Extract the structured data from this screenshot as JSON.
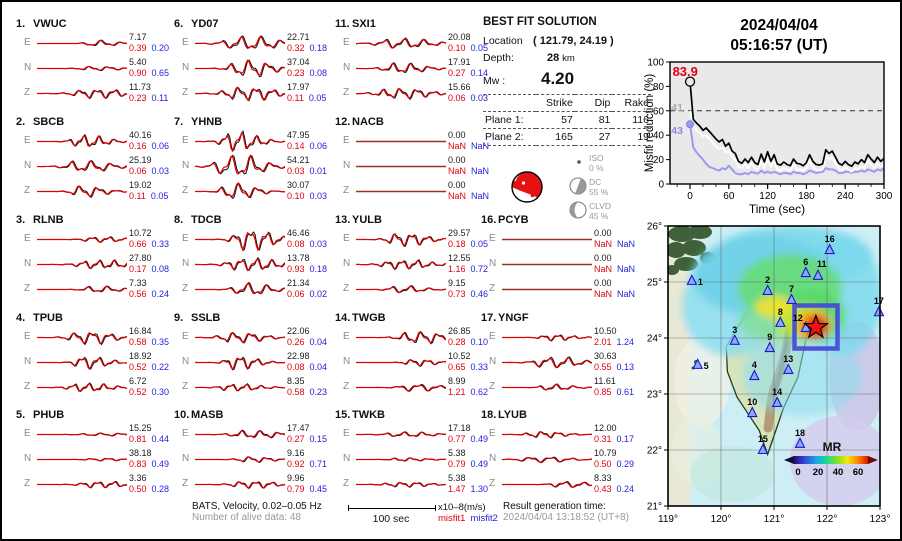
{
  "title": {
    "date": "2024/04/04",
    "time": "05:16:57  (UT)"
  },
  "solution": {
    "title": "BEST FIT SOLUTION",
    "location_label": "Location",
    "location_value": "( 121.79,  24.19 )",
    "depth_label": "Depth:",
    "depth_value": "28",
    "depth_unit": "km",
    "mw_label": "Mw :",
    "mw_value": "4.20",
    "table_headers": [
      "Strike",
      "Dip",
      "Rake"
    ],
    "planes": [
      {
        "label": "Plane 1:",
        "strike": "57",
        "dip": "81",
        "rake": "116"
      },
      {
        "label": "Plane 2:",
        "strike": "165",
        "dip": "27",
        "rake": "19"
      }
    ],
    "decomposition": [
      {
        "name": "ISO",
        "pct": "0 %"
      },
      {
        "name": "DC",
        "pct": "55 %"
      },
      {
        "name": "CLVD",
        "pct": "45 %"
      }
    ],
    "beachball_color": "#e81111"
  },
  "stations": [
    {
      "num": "1.",
      "name": "VWUC",
      "channels": [
        {
          "ch": "E",
          "amp": "7.17",
          "m1": "0.39",
          "m2": "0.20",
          "w": 0.9
        },
        {
          "ch": "N",
          "amp": "5.40",
          "m1": "0.90",
          "m2": "0.65",
          "w": 0.6
        },
        {
          "ch": "Z",
          "amp": "11.73",
          "m1": "0.23",
          "m2": "0.11",
          "w": 1.3
        }
      ]
    },
    {
      "num": "2.",
      "name": "SBCB",
      "channels": [
        {
          "ch": "E",
          "amp": "40.16",
          "m1": "0.16",
          "m2": "0.06",
          "w": 1.8
        },
        {
          "ch": "N",
          "amp": "25.19",
          "m1": "0.06",
          "m2": "0.03",
          "w": 1.6
        },
        {
          "ch": "Z",
          "amp": "19.02",
          "m1": "0.11",
          "m2": "0.05",
          "w": 1.6
        }
      ]
    },
    {
      "num": "3.",
      "name": "RLNB",
      "channels": [
        {
          "ch": "E",
          "amp": "10.72",
          "m1": "0.66",
          "m2": "0.33",
          "w": 0.8
        },
        {
          "ch": "N",
          "amp": "27.80",
          "m1": "0.17",
          "m2": "0.08",
          "w": 1.2
        },
        {
          "ch": "Z",
          "amp": "7.33",
          "m1": "0.56",
          "m2": "0.24",
          "w": 0.9
        }
      ]
    },
    {
      "num": "4.",
      "name": "TPUB",
      "channels": [
        {
          "ch": "E",
          "amp": "16.84",
          "m1": "0.58",
          "m2": "0.35",
          "w": 1.8
        },
        {
          "ch": "N",
          "amp": "18.92",
          "m1": "0.52",
          "m2": "0.22",
          "w": 1.9
        },
        {
          "ch": "Z",
          "amp": "6.72",
          "m1": "0.52",
          "m2": "0.30",
          "w": 1.2
        }
      ]
    },
    {
      "num": "5.",
      "name": "PHUB",
      "channels": [
        {
          "ch": "E",
          "amp": "15.25",
          "m1": "0.81",
          "m2": "0.44",
          "w": 0.4
        },
        {
          "ch": "N",
          "amp": "38.18",
          "m1": "0.83",
          "m2": "0.49",
          "w": 0.4
        },
        {
          "ch": "Z",
          "amp": "3.36",
          "m1": "0.50",
          "m2": "0.28",
          "w": 0.9
        }
      ]
    },
    {
      "num": "6.",
      "name": "YD07",
      "channels": [
        {
          "ch": "E",
          "amp": "22.71",
          "m1": "0.32",
          "m2": "0.18",
          "w": 2.0
        },
        {
          "ch": "N",
          "amp": "37.04",
          "m1": "0.23",
          "m2": "0.08",
          "w": 2.4
        },
        {
          "ch": "Z",
          "amp": "17.97",
          "m1": "0.11",
          "m2": "0.05",
          "w": 1.9
        }
      ]
    },
    {
      "num": "7.",
      "name": "YHNB",
      "channels": [
        {
          "ch": "E",
          "amp": "47.95",
          "m1": "0.14",
          "m2": "0.06",
          "w": 2.8
        },
        {
          "ch": "N",
          "amp": "54.21",
          "m1": "0.03",
          "m2": "0.01",
          "w": 3.2
        },
        {
          "ch": "Z",
          "amp": "30.07",
          "m1": "0.10",
          "m2": "0.03",
          "w": 2.4
        }
      ]
    },
    {
      "num": "8.",
      "name": "TDCB",
      "channels": [
        {
          "ch": "E",
          "amp": "46.46",
          "m1": "0.08",
          "m2": "0.03",
          "w": 3.0
        },
        {
          "ch": "N",
          "amp": "13.78",
          "m1": "0.93",
          "m2": "0.18",
          "w": 1.8
        },
        {
          "ch": "Z",
          "amp": "21.34",
          "m1": "0.06",
          "m2": "0.02",
          "w": 1.8
        }
      ]
    },
    {
      "num": "9.",
      "name": "SSLB",
      "channels": [
        {
          "ch": "E",
          "amp": "22.06",
          "m1": "0.26",
          "m2": "0.04",
          "w": 1.5
        },
        {
          "ch": "N",
          "amp": "22.98",
          "m1": "0.08",
          "m2": "0.04",
          "w": 2.0
        },
        {
          "ch": "Z",
          "amp": "8.35",
          "m1": "0.58",
          "m2": "0.23",
          "w": 1.0
        }
      ]
    },
    {
      "num": "10.",
      "name": "MASB",
      "channels": [
        {
          "ch": "E",
          "amp": "17.47",
          "m1": "0.27",
          "m2": "0.15",
          "w": 1.1
        },
        {
          "ch": "N",
          "amp": "9.16",
          "m1": "0.92",
          "m2": "0.71",
          "w": 0.8
        },
        {
          "ch": "Z",
          "amp": "9.96",
          "m1": "0.79",
          "m2": "0.45",
          "w": 1.0
        }
      ]
    },
    {
      "num": "11.",
      "name": "SXI1",
      "channels": [
        {
          "ch": "E",
          "amp": "20.08",
          "m1": "0.10",
          "m2": "0.05",
          "w": 1.4
        },
        {
          "ch": "N",
          "amp": "17.91",
          "m1": "0.27",
          "m2": "0.14",
          "w": 1.5
        },
        {
          "ch": "Z",
          "amp": "15.66",
          "m1": "0.06",
          "m2": "0.03",
          "w": 1.5
        }
      ]
    },
    {
      "num": "12.",
      "name": "NACB",
      "channels": [
        {
          "ch": "E",
          "amp": "0.00",
          "m1": "NaN",
          "m2": "NaN",
          "w": 0
        },
        {
          "ch": "N",
          "amp": "0.00",
          "m1": "NaN",
          "m2": "NaN",
          "w": 0
        },
        {
          "ch": "Z",
          "amp": "0.00",
          "m1": "NaN",
          "m2": "NaN",
          "w": 0
        }
      ]
    },
    {
      "num": "13.",
      "name": "YULB",
      "channels": [
        {
          "ch": "E",
          "amp": "29.57",
          "m1": "0.18",
          "m2": "0.05",
          "w": 1.9
        },
        {
          "ch": "N",
          "amp": "12.55",
          "m1": "1.16",
          "m2": "0.72",
          "w": 1.3
        },
        {
          "ch": "Z",
          "amp": "9.15",
          "m1": "0.73",
          "m2": "0.46",
          "w": 1.0
        }
      ]
    },
    {
      "num": "14.",
      "name": "TWGB",
      "channels": [
        {
          "ch": "E",
          "amp": "26.85",
          "m1": "0.28",
          "m2": "0.10",
          "w": 1.7
        },
        {
          "ch": "N",
          "amp": "10.52",
          "m1": "0.65",
          "m2": "0.33",
          "w": 1.0
        },
        {
          "ch": "Z",
          "amp": "8.99",
          "m1": "1.21",
          "m2": "0.62",
          "w": 1.0
        }
      ]
    },
    {
      "num": "15.",
      "name": "TWKB",
      "channels": [
        {
          "ch": "E",
          "amp": "17.18",
          "m1": "0.77",
          "m2": "0.49",
          "w": 0.7
        },
        {
          "ch": "N",
          "amp": "5.38",
          "m1": "0.79",
          "m2": "0.49",
          "w": 0.5
        },
        {
          "ch": "Z",
          "amp": "5.38",
          "m1": "1.47",
          "m2": "1.30",
          "w": 0.7
        }
      ]
    },
    {
      "num": "16.",
      "name": "PCYB",
      "channels": [
        {
          "ch": "E",
          "amp": "0.00",
          "m1": "NaN",
          "m2": "NaN",
          "w": 0
        },
        {
          "ch": "N",
          "amp": "0.00",
          "m1": "NaN",
          "m2": "NaN",
          "w": 0
        },
        {
          "ch": "Z",
          "amp": "0.00",
          "m1": "NaN",
          "m2": "NaN",
          "w": 0
        }
      ]
    },
    {
      "num": "17.",
      "name": "YNGF",
      "channels": [
        {
          "ch": "E",
          "amp": "10.50",
          "m1": "2.01",
          "m2": "1.24",
          "w": 0.9
        },
        {
          "ch": "N",
          "amp": "30.63",
          "m1": "0.55",
          "m2": "0.13",
          "w": 1.6
        },
        {
          "ch": "Z",
          "amp": "11.61",
          "m1": "0.85",
          "m2": "0.61",
          "w": 0.9
        }
      ]
    },
    {
      "num": "18.",
      "name": "LYUB",
      "channels": [
        {
          "ch": "E",
          "amp": "12.00",
          "m1": "0.31",
          "m2": "0.17",
          "w": 0.9
        },
        {
          "ch": "N",
          "amp": "10.79",
          "m1": "0.50",
          "m2": "0.29",
          "w": 0.8
        },
        {
          "ch": "Z",
          "amp": "8.33",
          "m1": "0.43",
          "m2": "0.24",
          "w": 0.9
        }
      ]
    }
  ],
  "footer": {
    "band": "BATS, Velocity, 0.02–0.05 Hz",
    "alive": "Number of alive data: 48",
    "scale": "100 sec",
    "units": "x10–8(m/s)",
    "misfit1": "misfit1",
    "misfit2": "misfit2",
    "gen_label": "Result generation time:",
    "gen_time": "2024/04/04 13:18:52 (UT+8)"
  },
  "chart_data": [
    {
      "type": "line",
      "title": "2024/04/04 05:16:57 (UT)",
      "xlabel": "Time (sec)",
      "ylabel": "Misfit reduction (%)",
      "xlim": [
        -31,
        300
      ],
      "ylim": [
        0,
        100
      ],
      "xticks": [
        0,
        60,
        120,
        180,
        240,
        300
      ],
      "yticks": [
        0,
        20,
        40,
        60,
        80,
        100
      ],
      "dashed_line_y": 60,
      "grid": false,
      "x": [
        0,
        5,
        10,
        15,
        20,
        25,
        30,
        35,
        40,
        45,
        50,
        55,
        60,
        65,
        70,
        75,
        80,
        85,
        90,
        95,
        100,
        105,
        110,
        115,
        120,
        125,
        130,
        135,
        140,
        145,
        150,
        155,
        160,
        165,
        170,
        175,
        180,
        185,
        190,
        195,
        200,
        205,
        210,
        215,
        220,
        225,
        230,
        235,
        240,
        245,
        250,
        255,
        260,
        265,
        270,
        275,
        280,
        285,
        290,
        295,
        300
      ],
      "series": [
        {
          "name": "misfit1 reduction",
          "color": "#000000",
          "values": [
            83.9,
            53,
            50,
            47.5,
            44,
            46,
            43,
            40,
            37,
            34.5,
            36.5,
            31,
            33.5,
            27,
            25,
            18.5,
            17,
            20.5,
            17.5,
            22,
            17.5,
            16,
            24.5,
            18,
            26.5,
            18.5,
            24,
            16.5,
            15.5,
            18,
            16,
            15,
            20.5,
            17,
            16.5,
            15,
            17.5,
            24,
            18.5,
            16,
            15.5,
            16.5,
            28,
            25,
            27,
            22,
            17,
            15.5,
            18.5,
            16,
            14.5,
            18,
            16.5,
            20,
            17.5,
            24,
            20.5,
            17.5,
            22,
            18.5,
            21
          ]
        },
        {
          "name": "reference",
          "color": "#ffffff",
          "values": [
            60,
            48,
            44,
            42,
            39,
            40,
            37,
            34,
            31,
            29,
            30,
            26,
            27,
            22,
            20,
            14,
            13,
            16,
            13,
            17,
            13,
            12,
            19,
            13,
            21,
            14,
            19,
            12,
            11,
            13,
            12,
            11,
            16,
            12,
            12,
            11,
            13,
            19,
            14,
            12,
            11,
            12,
            23,
            20,
            22,
            17,
            13,
            11,
            14,
            12,
            10,
            13,
            12,
            15,
            13,
            19,
            16,
            13,
            17,
            14,
            16
          ]
        },
        {
          "name": "misfit2 reduction",
          "color": "#9a9af0",
          "values": [
            49,
            30,
            26,
            23,
            20,
            16.5,
            14,
            13,
            12,
            11,
            13,
            12,
            15,
            12,
            9,
            8,
            8,
            9,
            8,
            10,
            9,
            8.5,
            11,
            9,
            10,
            9,
            10,
            9,
            8,
            9,
            9,
            8,
            10,
            9,
            9,
            8,
            9,
            11,
            10,
            9,
            9.5,
            10,
            13,
            12,
            12,
            11,
            9,
            9,
            10,
            10,
            9,
            10,
            10,
            11,
            10,
            12,
            11,
            10,
            12,
            11,
            13
          ]
        }
      ],
      "annotations": [
        {
          "text": "83.9",
          "color": "#e00010",
          "x": -27,
          "y": 91
        },
        {
          "text": "41",
          "color": "#a8a8a8",
          "x": -29,
          "y": 62.5
        },
        {
          "text": "43",
          "color": "#8888e8",
          "x": -29,
          "y": 43.5
        }
      ],
      "start_markers": [
        {
          "type": "open-circle",
          "x": 0,
          "y": 83.9
        },
        {
          "type": "dot",
          "x": 0,
          "y": 49,
          "color": "#9a9af0"
        }
      ]
    },
    {
      "type": "scatter",
      "name": "station-map",
      "xlim": [
        119,
        123
      ],
      "ylim": [
        21,
        26
      ],
      "lon_ticks": [
        119,
        120,
        121,
        122,
        123
      ],
      "lon_tick_labels": [
        "119°",
        "120°",
        "121°",
        "122°",
        "123°"
      ],
      "lat_ticks": [
        21,
        22,
        23,
        24,
        25,
        26
      ],
      "lat_tick_labels": [
        "21°",
        "22°",
        "23°",
        "24°",
        "25°",
        "26°"
      ],
      "epicenter": {
        "lon": 121.79,
        "lat": 24.19
      },
      "stations": [
        {
          "n": "1",
          "lon": 119.45,
          "lat": 25.02
        },
        {
          "n": "2",
          "lon": 120.88,
          "lat": 24.84
        },
        {
          "n": "3",
          "lon": 120.26,
          "lat": 23.95
        },
        {
          "n": "4",
          "lon": 120.63,
          "lat": 23.32
        },
        {
          "n": "5",
          "lon": 119.56,
          "lat": 23.52
        },
        {
          "n": "6",
          "lon": 121.6,
          "lat": 25.16
        },
        {
          "n": "7",
          "lon": 121.33,
          "lat": 24.68
        },
        {
          "n": "8",
          "lon": 121.12,
          "lat": 24.27
        },
        {
          "n": "9",
          "lon": 120.92,
          "lat": 23.82
        },
        {
          "n": "10",
          "lon": 120.59,
          "lat": 22.66
        },
        {
          "n": "11",
          "lon": 121.83,
          "lat": 25.11
        },
        {
          "n": "12",
          "lon": 121.6,
          "lat": 24.18
        },
        {
          "n": "13",
          "lon": 121.27,
          "lat": 23.43
        },
        {
          "n": "14",
          "lon": 121.06,
          "lat": 22.84
        },
        {
          "n": "15",
          "lon": 120.79,
          "lat": 22.0
        },
        {
          "n": "16",
          "lon": 122.05,
          "lat": 25.57
        },
        {
          "n": "17",
          "lon": 122.98,
          "lat": 24.46
        },
        {
          "n": "18",
          "lon": 121.49,
          "lat": 22.11
        }
      ],
      "colorbar": {
        "label": "MR",
        "ticks": [
          "0",
          "20",
          "40",
          "60"
        ]
      }
    }
  ]
}
